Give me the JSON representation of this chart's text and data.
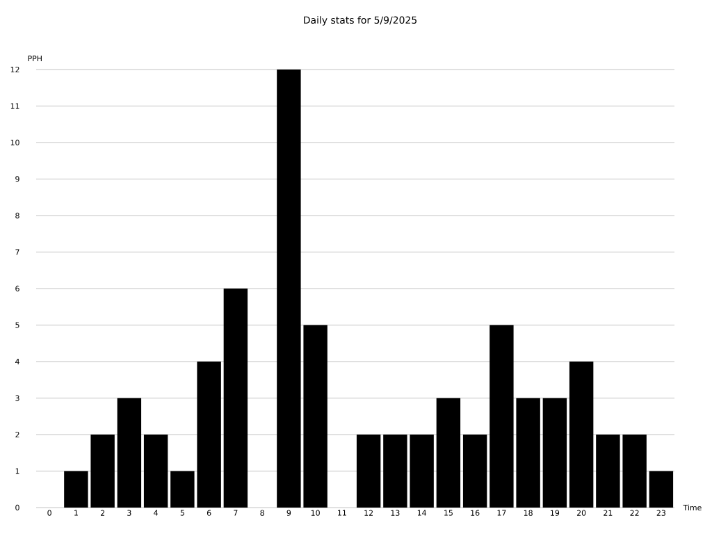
{
  "chart_data": {
    "type": "bar",
    "title": "Daily stats for 5/9/2025",
    "xlabel": "Time",
    "ylabel": "PPH",
    "categories": [
      "0",
      "1",
      "2",
      "3",
      "4",
      "5",
      "6",
      "7",
      "8",
      "9",
      "10",
      "11",
      "12",
      "13",
      "14",
      "15",
      "16",
      "17",
      "18",
      "19",
      "20",
      "21",
      "22",
      "23"
    ],
    "values": [
      0,
      1,
      2,
      3,
      2,
      1,
      4,
      6,
      0,
      12,
      5,
      0,
      2,
      2,
      2,
      3,
      2,
      5,
      3,
      3,
      4,
      2,
      2,
      1
    ],
    "color": "#000000",
    "ylim": [
      0,
      12
    ],
    "yticks": [
      0,
      1,
      2,
      3,
      4,
      5,
      6,
      7,
      8,
      9,
      10,
      11,
      12
    ],
    "grid": "y"
  }
}
